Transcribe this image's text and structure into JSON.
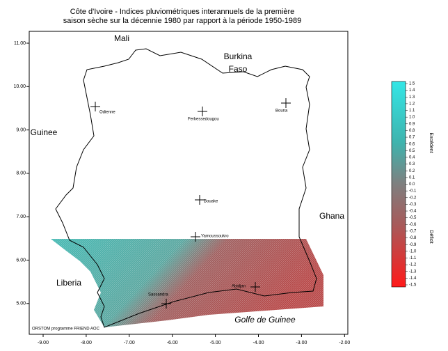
{
  "title": [
    "Côte d'Ivoire - Indices pluviométriques interannuels de la première",
    "saison sèche sur la décennie 1980 par rapport à la période 1950-1989"
  ],
  "axes": {
    "xticks": [
      "-9.00",
      "-8.00",
      "-7.00",
      "-6.00",
      "-5.00",
      "-4.00",
      "-3.00",
      "-2.00"
    ],
    "yticks": [
      "11.00",
      "10.00",
      "9.00",
      "8.00",
      "7.00",
      "6.00",
      "5.00"
    ]
  },
  "regions": [
    "Mali",
    "Burkina",
    "Faso",
    "Guinee",
    "Ghana",
    "Liberia",
    "Golfe de Guinee"
  ],
  "cities": [
    "Odienne",
    "Ferkessedougou",
    "Bouna",
    "Bouake",
    "Yamoussoukro",
    "Sassandra",
    "Abidjan"
  ],
  "credit": "ORSTOM programme FRIEND AOC",
  "legend": {
    "labels": [
      "1.5",
      "1.4",
      "1.3",
      "1.2",
      "1.1",
      "1.0",
      "0.9",
      "0.8",
      "0.7",
      "0.6",
      "0.5",
      "0.4",
      "0.3",
      "0.2",
      "0.1",
      "0.0",
      "-0.1",
      "-0.2",
      "-0.3",
      "-0.4",
      "-0.5",
      "-0.6",
      "-0.7",
      "-0.8",
      "-0.9",
      "-1.0",
      "-1.1",
      "-1.2",
      "-1.3",
      "-1.4",
      "-1.5"
    ],
    "top": "Excédent",
    "bottom": "Déficit"
  }
}
